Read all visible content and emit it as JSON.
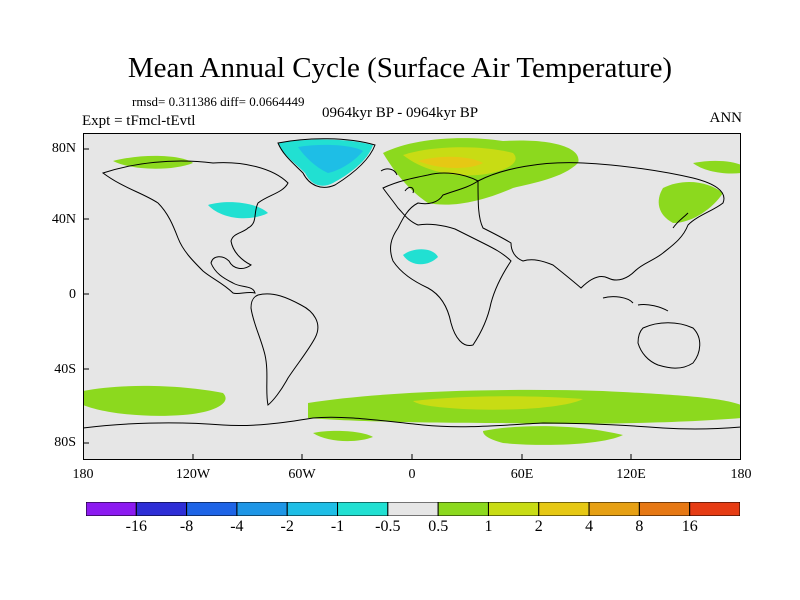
{
  "title": "Mean Annual Cycle (Surface Air Temperature)",
  "stats": "rmsd= 0.311386 diff= 0.0664449",
  "experiment": "Expt = tFmcl-tEvtl",
  "period": "0964kyr BP - 0964kyr BP",
  "season": "ANN",
  "y_axis_labels": [
    "80N",
    "40N",
    "0",
    "40S",
    "80S"
  ],
  "x_axis_labels": [
    "180",
    "120W",
    "60W",
    "0",
    "60E",
    "120E",
    "180"
  ],
  "legend": {
    "colors": [
      "#8C1AF0",
      "#2E2ED6",
      "#1E64E6",
      "#1E96E6",
      "#1EBEE6",
      "#21E0D2",
      "#E6E6E6",
      "#8CD91E",
      "#C8DC14",
      "#E6C814",
      "#E6A014",
      "#E67814",
      "#E63C14"
    ],
    "labels": [
      "-16",
      "-8",
      "-4",
      "-2",
      "-1",
      "-0.5",
      "0.5",
      "1",
      "2",
      "4",
      "8",
      "16"
    ]
  }
}
